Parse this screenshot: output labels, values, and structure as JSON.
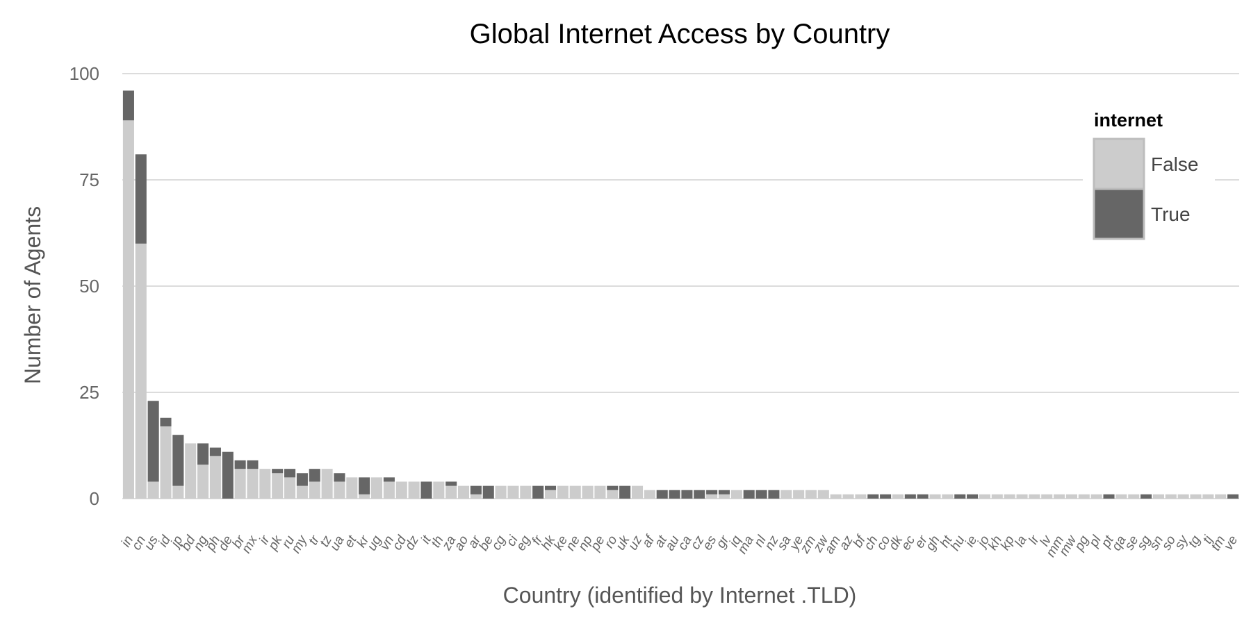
{
  "chart_data": {
    "type": "bar",
    "stacked": true,
    "title": "Global Internet Access by Country",
    "xlabel": "Country (identified by Internet .TLD)",
    "ylabel": "Number of Agents",
    "ylim": [
      0,
      100
    ],
    "yticks": [
      0,
      25,
      50,
      75,
      100
    ],
    "grid": "horizontal",
    "legend": {
      "title": "internet",
      "placement": "top-right"
    },
    "colors": {
      "False": "#cccccc",
      "True": "#666666"
    },
    "categories": [
      "in",
      "cn",
      "us",
      "id",
      "jp",
      "bd",
      "ng",
      "ph",
      "de",
      "br",
      "mx",
      "ir",
      "pk",
      "ru",
      "my",
      "tr",
      "tz",
      "ua",
      "et",
      "kr",
      "ug",
      "vn",
      "cd",
      "dz",
      "it",
      "th",
      "za",
      "ao",
      "ar",
      "be",
      "cg",
      "ci",
      "eg",
      "fr",
      "hk",
      "ke",
      "ne",
      "np",
      "pe",
      "ro",
      "uk",
      "uz",
      "af",
      "at",
      "au",
      "ca",
      "cz",
      "es",
      "gr",
      "iq",
      "ma",
      "nl",
      "nz",
      "sa",
      "ye",
      "zm",
      "zw",
      "am",
      "az",
      "bf",
      "ch",
      "co",
      "dk",
      "ec",
      "er",
      "gh",
      "ht",
      "hu",
      "ie",
      "jo",
      "kh",
      "kp",
      "la",
      "lr",
      "lv",
      "mm",
      "mw",
      "pg",
      "pl",
      "pt",
      "qa",
      "se",
      "sg",
      "sn",
      "so",
      "sy",
      "tg",
      "tj",
      "tm",
      "ve"
    ],
    "series": [
      {
        "name": "False",
        "values": [
          89,
          60,
          4,
          17,
          3,
          13,
          8,
          10,
          0,
          7,
          7,
          7,
          6,
          5,
          3,
          4,
          7,
          4,
          5,
          1,
          5,
          4,
          4,
          4,
          0,
          4,
          3,
          3,
          1,
          0,
          3,
          3,
          3,
          0,
          2,
          3,
          3,
          3,
          3,
          2,
          0,
          3,
          2,
          0,
          0,
          0,
          0,
          1,
          1,
          2,
          0,
          0,
          0,
          2,
          2,
          2,
          2,
          1,
          1,
          1,
          0,
          0,
          1,
          0,
          0,
          1,
          1,
          0,
          0,
          1,
          1,
          1,
          1,
          1,
          1,
          1,
          1,
          1,
          1,
          0,
          1,
          1,
          0,
          1,
          1,
          1,
          1,
          1,
          1,
          0
        ]
      },
      {
        "name": "True",
        "values": [
          7,
          21,
          19,
          2,
          12,
          0,
          5,
          2,
          11,
          2,
          2,
          0,
          1,
          2,
          3,
          3,
          0,
          2,
          0,
          4,
          0,
          1,
          0,
          0,
          4,
          0,
          1,
          0,
          2,
          3,
          0,
          0,
          0,
          3,
          1,
          0,
          0,
          0,
          0,
          1,
          3,
          0,
          0,
          2,
          2,
          2,
          2,
          1,
          1,
          0,
          2,
          2,
          2,
          0,
          0,
          0,
          0,
          0,
          0,
          0,
          1,
          1,
          0,
          1,
          1,
          0,
          0,
          1,
          1,
          0,
          0,
          0,
          0,
          0,
          0,
          0,
          0,
          0,
          0,
          1,
          0,
          0,
          1,
          0,
          0,
          0,
          0,
          0,
          0,
          1
        ]
      }
    ]
  }
}
